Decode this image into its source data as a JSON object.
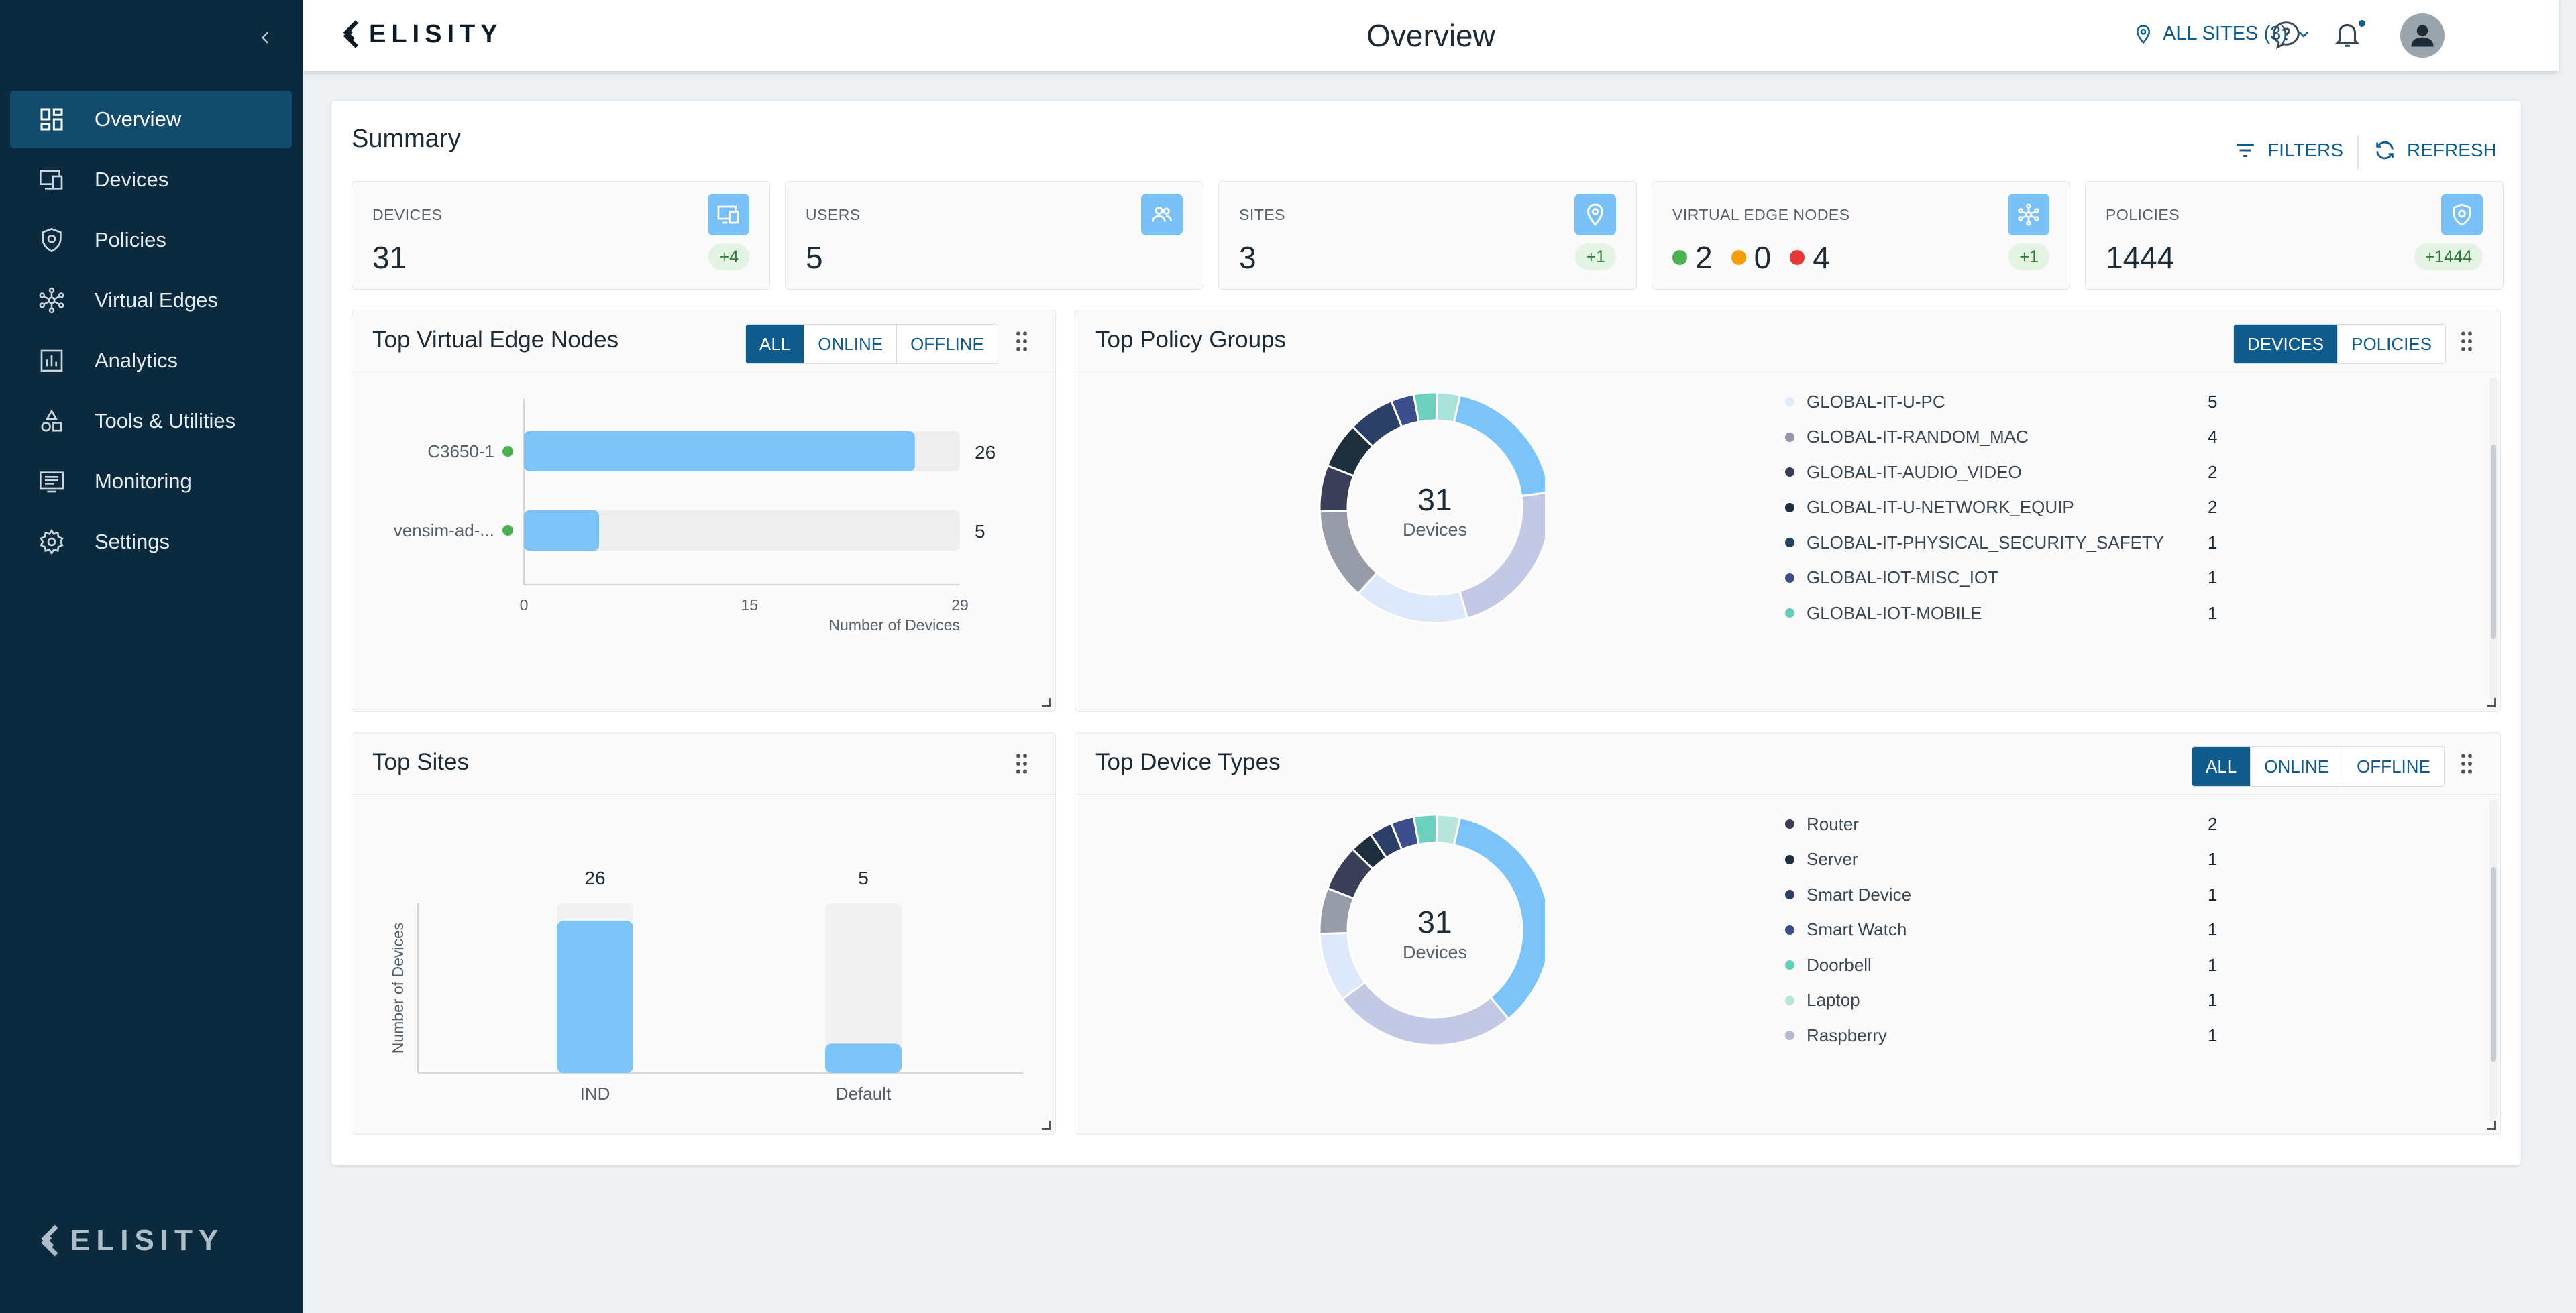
{
  "brand": "ELISITY",
  "sidebar": {
    "items": [
      {
        "label": "Overview",
        "icon": "dashboard-icon",
        "active": true
      },
      {
        "label": "Devices",
        "icon": "devices-icon"
      },
      {
        "label": "Policies",
        "icon": "shield-icon"
      },
      {
        "label": "Virtual Edges",
        "icon": "network-hub-icon"
      },
      {
        "label": "Analytics",
        "icon": "bar-chart-icon"
      },
      {
        "label": "Tools & Utilities",
        "icon": "tools-shapes-icon"
      },
      {
        "label": "Monitoring",
        "icon": "monitor-list-icon"
      },
      {
        "label": "Settings",
        "icon": "gear-icon"
      }
    ]
  },
  "header": {
    "title": "Overview",
    "site_selector": "ALL SITES (3)"
  },
  "summary": {
    "title": "Summary",
    "filters_label": "FILTERS",
    "refresh_label": "REFRESH",
    "stats": [
      {
        "label": "DEVICES",
        "value": "31",
        "badge": "+4",
        "icon": "devices-icon"
      },
      {
        "label": "USERS",
        "value": "5",
        "icon": "users-icon"
      },
      {
        "label": "SITES",
        "value": "3",
        "badge": "+1",
        "icon": "location-pin-icon"
      },
      {
        "label": "VIRTUAL EDGE NODES",
        "online": "2",
        "warning": "0",
        "offline": "4",
        "badge": "+1",
        "icon": "network-hub-icon"
      },
      {
        "label": "POLICIES",
        "value": "1444",
        "badge": "+1444",
        "icon": "shield-icon"
      }
    ]
  },
  "widgets": {
    "top_ven": {
      "title": "Top Virtual Edge Nodes",
      "filters": [
        "ALL",
        "ONLINE",
        "OFFLINE"
      ],
      "active_filter": "ALL",
      "chart_data": {
        "type": "bar",
        "orientation": "horizontal",
        "categories": [
          "C3650-1",
          "vensim-ad-..."
        ],
        "values": [
          26,
          5
        ],
        "status": [
          "online",
          "online"
        ],
        "xlabel": "Number of Devices",
        "ticks": [
          "0",
          "15",
          "29"
        ],
        "xlim": [
          0,
          29
        ]
      }
    },
    "top_policy_groups": {
      "title": "Top Policy Groups",
      "filters": [
        "DEVICES",
        "POLICIES"
      ],
      "active_filter": "DEVICES",
      "center_value": "31",
      "center_label": "Devices",
      "chart_data": {
        "type": "pie",
        "categories": [
          "GLOBAL-IT-U-PC",
          "GLOBAL-IT-RANDOM_MAC",
          "GLOBAL-IT-AUDIO_VIDEO",
          "GLOBAL-IT-U-NETWORK_EQUIP",
          "GLOBAL-IT-PHYSICAL_SECURITY_SAFETY",
          "GLOBAL-IOT-MISC_IOT",
          "GLOBAL-IOT-MOBILE"
        ],
        "values": [
          5,
          4,
          2,
          2,
          1,
          1,
          1
        ],
        "colors": [
          "#e1ecfb",
          "#9298a6",
          "#3a3f55",
          "#1c2f3d",
          "#2b3e64",
          "#3c4e8a",
          "#69cdbb"
        ],
        "ring_values": [
          6,
          7,
          5,
          4,
          2,
          2,
          2,
          1,
          1,
          1
        ],
        "ring_colors": [
          "#7cc3f7",
          "#c3c9e4",
          "#dde9fa",
          "#989ca8",
          "#3b3f58",
          "#1d2f3d",
          "#2c3f66",
          "#3d4e8c",
          "#6bd0bd",
          "#a8e2d8"
        ]
      }
    },
    "top_sites": {
      "title": "Top Sites",
      "chart_data": {
        "type": "bar",
        "categories": [
          "IND",
          "Default"
        ],
        "values": [
          26,
          5
        ],
        "ylabel": "Number of Devices",
        "ylim": [
          0,
          29
        ]
      }
    },
    "top_device_types": {
      "title": "Top Device Types",
      "filters": [
        "ALL",
        "ONLINE",
        "OFFLINE"
      ],
      "active_filter": "ALL",
      "center_value": "31",
      "center_label": "Devices",
      "chart_data": {
        "type": "pie",
        "categories": [
          "Router",
          "Server",
          "Smart Device",
          "Smart Watch",
          "Doorbell",
          "Laptop",
          "Raspberry"
        ],
        "values": [
          2,
          1,
          1,
          1,
          1,
          1,
          1
        ],
        "colors": [
          "#3a3f55",
          "#1c2f3d",
          "#2b3e64",
          "#3c4e8a",
          "#69cdbb",
          "#b8e5dc",
          "#b4bad4"
        ],
        "ring_values": [
          11,
          8,
          3,
          2,
          2,
          1,
          1,
          1,
          1,
          1
        ],
        "ring_colors": [
          "#7cc3f7",
          "#c3c9e4",
          "#dde9fa",
          "#989ca8",
          "#3b3f58",
          "#1d2f3d",
          "#2c3f66",
          "#3d4e8c",
          "#6bd0bd",
          "#b8e5dc"
        ]
      }
    }
  },
  "colors": {
    "sidebar_bg": "#0b2a3e",
    "accent": "#0f5b8c",
    "bar": "#7cc3f7",
    "online": "#4caf50",
    "warning": "#f59e0b",
    "offline": "#e53935"
  }
}
